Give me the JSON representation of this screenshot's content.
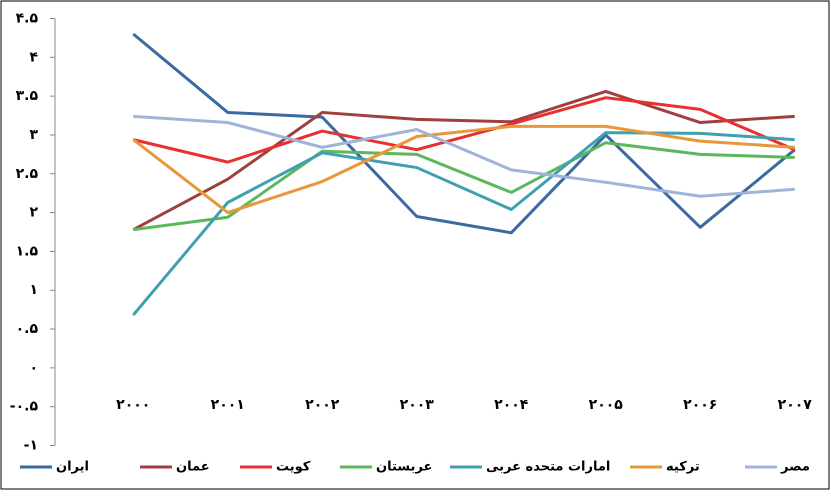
{
  "chart_data": {
    "type": "line",
    "categories": [
      "۲۰۰۰",
      "۲۰۰۱",
      "۲۰۰۲",
      "۲۰۰۳",
      "۲۰۰۴",
      "۲۰۰۵",
      "۲۰۰۶",
      "۲۰۰۷"
    ],
    "ylim": [
      -1,
      4.5
    ],
    "yticks": [
      {
        "value": -1,
        "label": "-۱"
      },
      {
        "value": -0.5,
        "label": "-۰.۵"
      },
      {
        "value": 0,
        "label": "۰"
      },
      {
        "value": 0.5,
        "label": "۰.۵"
      },
      {
        "value": 1,
        "label": "۱"
      },
      {
        "value": 1.5,
        "label": "۱.۵"
      },
      {
        "value": 2,
        "label": "۲"
      },
      {
        "value": 2.5,
        "label": "۲.۵"
      },
      {
        "value": 3,
        "label": "۳"
      },
      {
        "value": 3.5,
        "label": "۳.۵"
      },
      {
        "value": 4,
        "label": "۴"
      },
      {
        "value": 4.5,
        "label": "۴.۵"
      }
    ],
    "series": [
      {
        "name": "ایران",
        "color": "#3a6aa0",
        "values": [
          4.3,
          3.29,
          3.23,
          1.95,
          1.74,
          3.0,
          1.81,
          2.81
        ]
      },
      {
        "name": "عمان",
        "color": "#a0403e",
        "values": [
          1.78,
          2.43,
          3.29,
          3.2,
          3.17,
          3.56,
          3.16,
          3.24
        ]
      },
      {
        "name": "کویت",
        "color": "#e83030",
        "values": [
          2.94,
          2.65,
          3.05,
          2.81,
          3.14,
          3.48,
          3.33,
          2.81
        ]
      },
      {
        "name": "عربستان",
        "color": "#5cb85c",
        "values": [
          1.78,
          1.94,
          2.79,
          2.75,
          2.26,
          2.9,
          2.75,
          2.71
        ]
      },
      {
        "name": "امارات متحده عربی",
        "color": "#40a0b0",
        "values": [
          0.68,
          2.13,
          2.77,
          2.58,
          2.04,
          3.03,
          3.02,
          2.94
        ]
      },
      {
        "name": "ترکیه",
        "color": "#e8973a",
        "values": [
          2.94,
          2.0,
          2.4,
          2.98,
          3.11,
          3.11,
          2.92,
          2.84
        ]
      },
      {
        "name": "مصر",
        "color": "#9fb4d8",
        "values": [
          3.24,
          3.16,
          2.84,
          3.07,
          2.55,
          2.39,
          2.21,
          2.3
        ]
      }
    ]
  }
}
